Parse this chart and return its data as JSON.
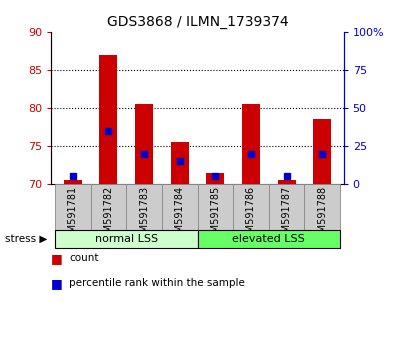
{
  "title": "GDS3868 / ILMN_1739374",
  "samples": [
    "GSM591781",
    "GSM591782",
    "GSM591783",
    "GSM591784",
    "GSM591785",
    "GSM591786",
    "GSM591787",
    "GSM591788"
  ],
  "count_values": [
    70.5,
    87.0,
    80.5,
    75.5,
    71.5,
    80.5,
    70.5,
    78.5
  ],
  "percentile_values": [
    5,
    35,
    20,
    15,
    5,
    20,
    5,
    20
  ],
  "count_base": 70,
  "ylim_left": [
    70,
    90
  ],
  "ylim_right": [
    0,
    100
  ],
  "yticks_left": [
    70,
    75,
    80,
    85,
    90
  ],
  "yticks_right": [
    0,
    25,
    50,
    75,
    100
  ],
  "yticklabels_right": [
    "0",
    "25",
    "50",
    "75",
    "100%"
  ],
  "bar_color": "#cc0000",
  "percentile_color": "#0000cc",
  "groups": [
    {
      "label": "normal LSS",
      "start": 0,
      "end": 3,
      "color": "#ccffcc"
    },
    {
      "label": "elevated LSS",
      "start": 4,
      "end": 7,
      "color": "#66ff66"
    }
  ],
  "stress_label": "stress",
  "legend": [
    {
      "label": "count",
      "color": "#cc0000"
    },
    {
      "label": "percentile rank within the sample",
      "color": "#0000cc"
    }
  ],
  "bar_width": 0.5,
  "xlim": [
    -0.6,
    7.6
  ],
  "sample_box_color": "#cccccc",
  "sample_box_edge": "#888888"
}
